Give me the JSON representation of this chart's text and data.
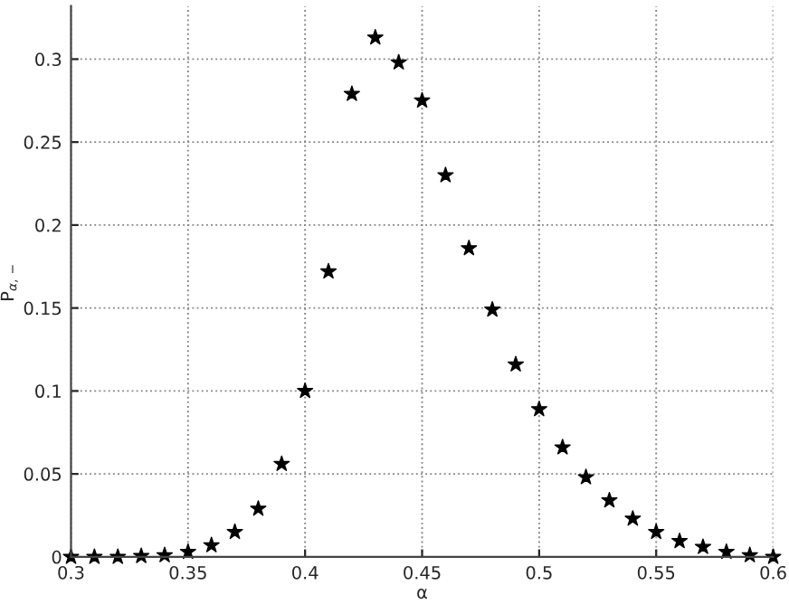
{
  "chart_data": {
    "type": "scatter",
    "xlabel": "α",
    "ylabel": "P$_{α,−}$",
    "x": [
      0.3,
      0.31,
      0.32,
      0.33,
      0.34,
      0.35,
      0.36,
      0.37,
      0.38,
      0.39,
      0.4,
      0.41,
      0.42,
      0.43,
      0.44,
      0.45,
      0.46,
      0.47,
      0.48,
      0.49,
      0.5,
      0.51,
      0.52,
      0.53,
      0.54,
      0.55,
      0.56,
      0.57,
      0.58,
      0.59,
      0.6
    ],
    "series": [
      {
        "color": "#000000",
        "values": [
          0,
          0,
          0,
          0.0005,
          0.001,
          0.003,
          0.007,
          0.015,
          0.029,
          0.056,
          0.1,
          0.172,
          0.279,
          0.313,
          0.298,
          0.275,
          0.23,
          0.186,
          0.149,
          0.116,
          0.089,
          0.066,
          0.048,
          0.034,
          0.023,
          0.015,
          0.0095,
          0.006,
          0.003,
          0.001,
          0
        ]
      }
    ],
    "xlim": [
      0.3,
      0.6
    ],
    "ylim": [
      0,
      0.332
    ],
    "xticks": [
      0.3,
      0.35,
      0.4,
      0.45,
      0.5,
      0.55,
      0.6
    ],
    "yticks": [
      0,
      0.05,
      0.1,
      0.15,
      0.2,
      0.25,
      0.3
    ],
    "grid": true,
    "marker": "star"
  }
}
